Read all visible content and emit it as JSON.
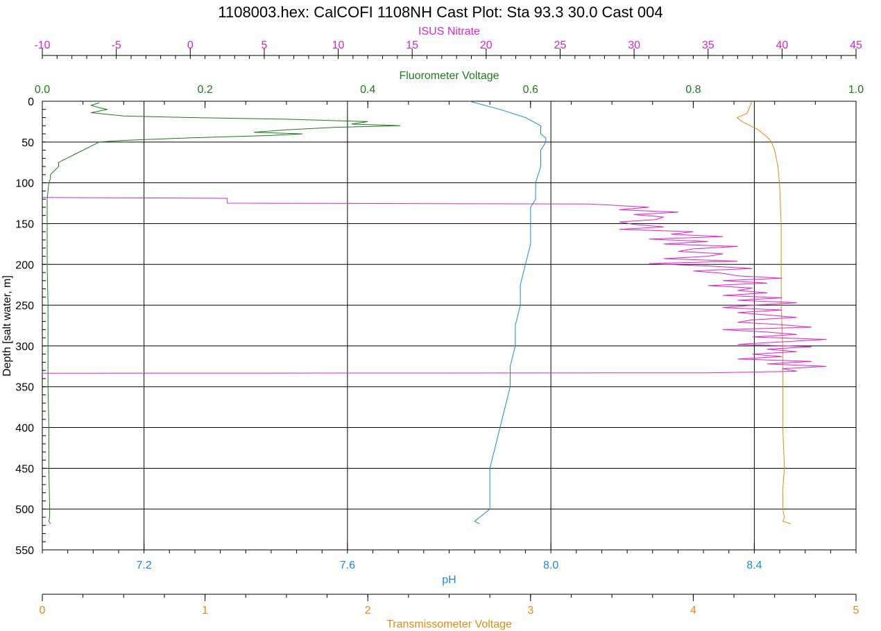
{
  "chart_data": {
    "type": "line",
    "title": "1108003.hex: CalCOFI 1108NH Cast Plot: Sta 93.3 30.0 Cast 004",
    "grid": true,
    "legend": "none",
    "y_axis": {
      "label": "Depth [salt water, m]",
      "range": [
        0,
        550
      ],
      "reversed": true,
      "ticks": [
        "0",
        "50",
        "100",
        "150",
        "200",
        "250",
        "300",
        "350",
        "400",
        "450",
        "500",
        "550"
      ]
    },
    "x_axes": [
      {
        "id": "nitrate",
        "label": "ISUS Nitrate",
        "position": "top",
        "range": [
          -10,
          45
        ],
        "ticks": [
          "-10",
          "-5",
          "0",
          "5",
          "10",
          "15",
          "20",
          "25",
          "30",
          "35",
          "40",
          "45"
        ],
        "color": "#e020d0"
      },
      {
        "id": "fluor",
        "label": "Fluorometer Voltage",
        "position": "top",
        "range": [
          0.0,
          1.0
        ],
        "ticks": [
          "0.0",
          "0.2",
          "0.4",
          "0.6",
          "0.8",
          "1.0"
        ],
        "color": "#1a7a1a"
      },
      {
        "id": "ph",
        "label": "pH",
        "position": "bottom",
        "range": [
          7.0,
          8.6
        ],
        "ticks": [
          "7.2",
          "7.6",
          "8.0",
          "8.4"
        ],
        "color": "#1a88d8"
      },
      {
        "id": "trans",
        "label": "Transmissometer Voltage",
        "position": "bottom",
        "range": [
          0,
          5
        ],
        "ticks": [
          "0",
          "1",
          "2",
          "3",
          "4",
          "5"
        ],
        "color": "#e08a10"
      }
    ],
    "series": [
      {
        "axis": "fluor",
        "color": "#1a7a1a",
        "depth": [
          2,
          5,
          8,
          10,
          14,
          18,
          20,
          22,
          25,
          28,
          30,
          32,
          35,
          38,
          40,
          42,
          45,
          48,
          50,
          55,
          60,
          65,
          70,
          75,
          80,
          85,
          90,
          95,
          100,
          110,
          120,
          150,
          200,
          250,
          300,
          350,
          400,
          450,
          500,
          510,
          515,
          518
        ],
        "values": [
          0.07,
          0.06,
          0.07,
          0.08,
          0.06,
          0.1,
          0.18,
          0.3,
          0.4,
          0.38,
          0.44,
          0.36,
          0.3,
          0.26,
          0.32,
          0.28,
          0.18,
          0.1,
          0.07,
          0.06,
          0.05,
          0.04,
          0.03,
          0.02,
          0.02,
          0.015,
          0.01,
          0.01,
          0.008,
          0.007,
          0.006,
          0.006,
          0.006,
          0.007,
          0.007,
          0.007,
          0.008,
          0.008,
          0.009,
          0.009,
          0.008,
          0.01
        ]
      },
      {
        "axis": "ph",
        "color": "#1a88d8",
        "depth": [
          0,
          10,
          20,
          30,
          35,
          40,
          45,
          50,
          60,
          80,
          100,
          120,
          130,
          150,
          175,
          200,
          225,
          250,
          275,
          300,
          325,
          350,
          375,
          400,
          425,
          450,
          475,
          500,
          505,
          510,
          515,
          518
        ],
        "values": [
          7.84,
          7.9,
          7.95,
          7.98,
          7.98,
          7.98,
          7.99,
          7.99,
          7.98,
          7.98,
          7.97,
          7.97,
          7.96,
          7.96,
          7.96,
          7.95,
          7.94,
          7.94,
          7.93,
          7.93,
          7.92,
          7.92,
          7.91,
          7.9,
          7.89,
          7.88,
          7.88,
          7.88,
          7.87,
          7.86,
          7.85,
          7.86
        ]
      },
      {
        "axis": "trans",
        "color": "#e08a10",
        "depth": [
          0,
          5,
          10,
          15,
          20,
          22,
          25,
          30,
          35,
          40,
          45,
          50,
          60,
          80,
          100,
          150,
          200,
          250,
          300,
          350,
          400,
          450,
          475,
          500,
          510,
          515,
          518
        ],
        "values": [
          4.36,
          4.35,
          4.34,
          4.33,
          4.27,
          4.28,
          4.3,
          4.35,
          4.4,
          4.43,
          4.46,
          4.48,
          4.5,
          4.52,
          4.53,
          4.54,
          4.54,
          4.54,
          4.55,
          4.55,
          4.55,
          4.56,
          4.55,
          4.55,
          4.56,
          4.55,
          4.6
        ]
      },
      {
        "axis": "nitrate",
        "color": "#e020d0",
        "depth": [
          118,
          119,
          125,
          126,
          127,
          130,
          133,
          136,
          139,
          142,
          145,
          148,
          151,
          154,
          157,
          160,
          163,
          166,
          169,
          172,
          175,
          178,
          181,
          184,
          187,
          190,
          193,
          196,
          199,
          202,
          205,
          208,
          211,
          214,
          217,
          220,
          223,
          226,
          229,
          232,
          235,
          238,
          241,
          244,
          247,
          250,
          253,
          256,
          259,
          262,
          265,
          268,
          271,
          274,
          277,
          280,
          283,
          286,
          289,
          292,
          295,
          298,
          301,
          304,
          307,
          310,
          313,
          316,
          319,
          322,
          325,
          328,
          331,
          333,
          333.5
        ],
        "values": [
          -10,
          2.5,
          2.5,
          27,
          28,
          31,
          29,
          33,
          30,
          32,
          31.5,
          29,
          30,
          32,
          29,
          34,
          32.5,
          36,
          31,
          35,
          32,
          37,
          34,
          33,
          36,
          35,
          32,
          37,
          31,
          35,
          38,
          34,
          36,
          37,
          40,
          36,
          39,
          35,
          38,
          37,
          39,
          36,
          40,
          37,
          41,
          38,
          36,
          40,
          37,
          39,
          41,
          38,
          37,
          40,
          42,
          36,
          39,
          41,
          38,
          43,
          40,
          37,
          42,
          39,
          41,
          38,
          40,
          37,
          42,
          39,
          43,
          40,
          41,
          35,
          -10
        ]
      }
    ]
  }
}
